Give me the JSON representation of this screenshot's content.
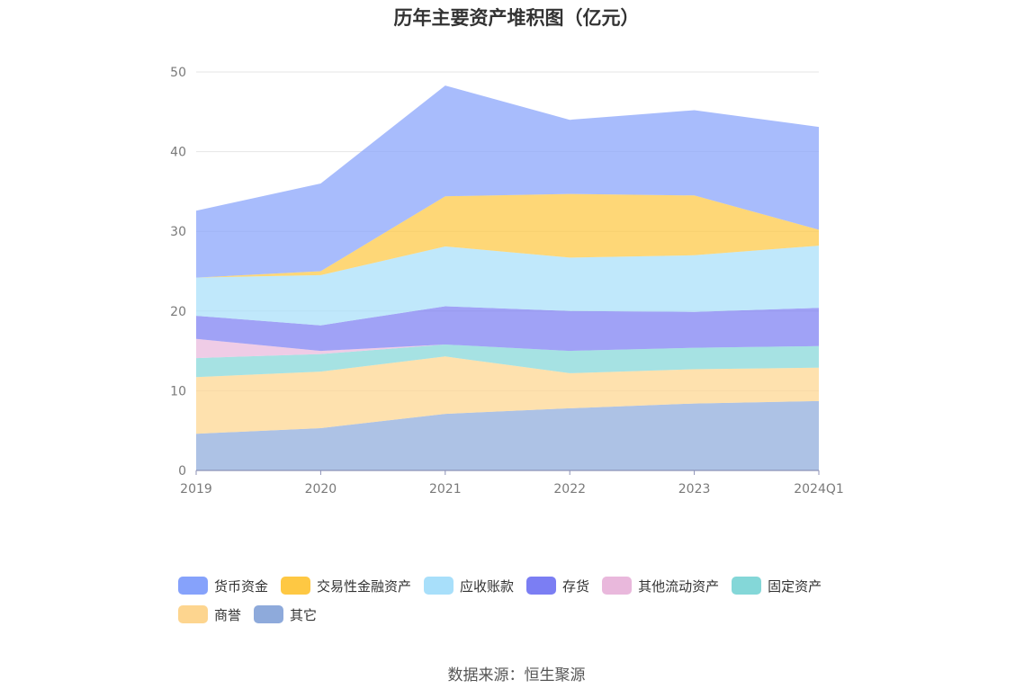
{
  "chart_data": {
    "type": "area",
    "stacked": true,
    "title": "历年主要资产堆积图（亿元）",
    "categories": [
      "2019",
      "2020",
      "2021",
      "2022",
      "2023",
      "2024Q1"
    ],
    "ylim": [
      0,
      50
    ],
    "yticks": [
      0,
      10,
      20,
      30,
      40,
      50
    ],
    "grid": true,
    "legend_position": "bottom",
    "series": [
      {
        "name": "其它",
        "color": "#8eaadb",
        "values": [
          4.6,
          5.3,
          7.1,
          7.8,
          8.4,
          8.7
        ]
      },
      {
        "name": "商誉",
        "color": "#fdd58f",
        "values": [
          7.1,
          7.1,
          7.2,
          4.4,
          4.3,
          4.2
        ]
      },
      {
        "name": "固定资产",
        "color": "#84d7d8",
        "values": [
          2.4,
          2.2,
          1.5,
          2.8,
          2.7,
          2.7
        ]
      },
      {
        "name": "其他流动资产",
        "color": "#e9b8dc",
        "values": [
          2.4,
          0.4,
          0.0,
          0.0,
          0.0,
          0.0
        ]
      },
      {
        "name": "存货",
        "color": "#7b7ef3",
        "values": [
          2.9,
          3.2,
          4.8,
          5.0,
          4.5,
          4.8
        ]
      },
      {
        "name": "应收账款",
        "color": "#a8dffa",
        "values": [
          4.8,
          6.3,
          7.5,
          6.7,
          7.1,
          7.8
        ]
      },
      {
        "name": "交易性金融资产",
        "color": "#fec843",
        "values": [
          0.0,
          0.5,
          6.3,
          8.0,
          7.5,
          2.0
        ]
      },
      {
        "name": "货币资金",
        "color": "#86a2fb",
        "values": [
          8.4,
          11.0,
          13.9,
          9.3,
          10.7,
          12.9
        ]
      }
    ],
    "legend_order": [
      "货币资金",
      "交易性金融资产",
      "应收账款",
      "存货",
      "其他流动资产",
      "固定资产",
      "商誉",
      "其它"
    ]
  },
  "source": "数据来源：恒生聚源"
}
